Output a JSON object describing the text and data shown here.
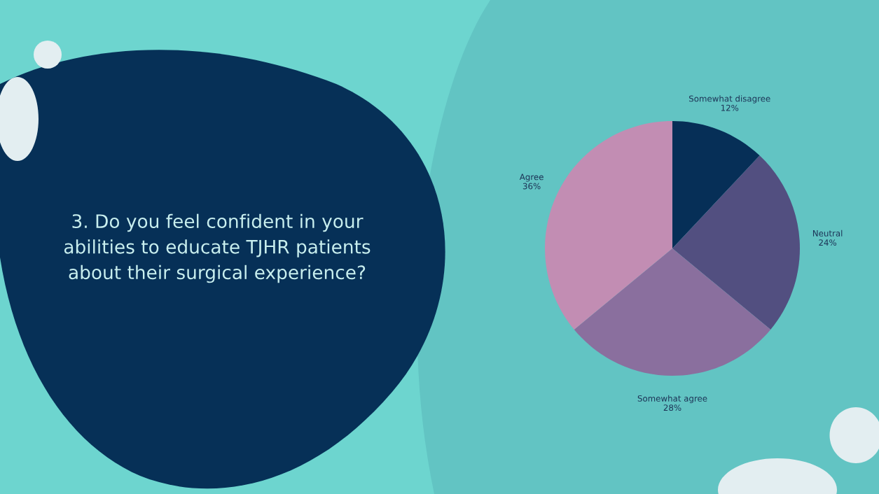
{
  "chart_data": {
    "type": "pie",
    "title": "3. Do you feel confident in your\nabilities to educate TJHR patients\nabout their surgical experience?",
    "categories": [
      "Somewhat disagree",
      "Neutral",
      "Somewhat agree",
      "Agree"
    ],
    "values": [
      12,
      24,
      28,
      36
    ],
    "colors": [
      "#062f57",
      "#524f80",
      "#8a6f9e",
      "#c28db3"
    ],
    "value_labels": [
      "12%",
      "24%",
      "28%",
      "36%"
    ],
    "legend": false
  }
}
